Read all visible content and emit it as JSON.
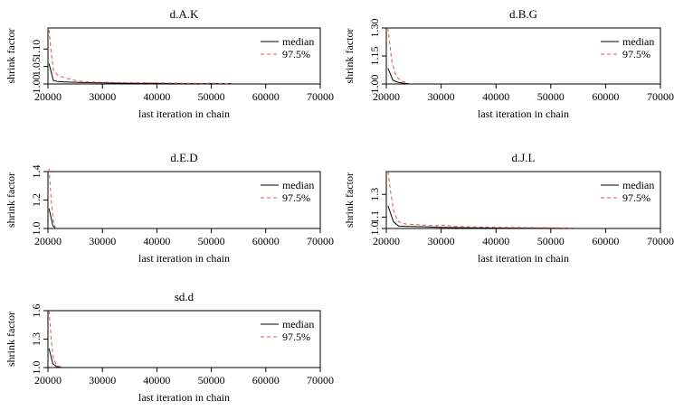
{
  "chart_data": [
    {
      "type": "line",
      "title": "d.A.K",
      "xlabel": "last iteration in chain",
      "ylabel": "shrink factor",
      "xlim": [
        20000,
        70000
      ],
      "ylim": [
        1.0,
        1.16
      ],
      "x_ticks": [
        20000,
        30000,
        40000,
        50000,
        60000,
        70000
      ],
      "y_ticks": [
        1.0,
        1.05,
        1.1
      ],
      "y_tick_labels": [
        "1.00",
        "1.05",
        "1.10"
      ],
      "legend": {
        "position": "top-right",
        "entries": [
          "median",
          "97.5%"
        ]
      },
      "series": [
        {
          "name": "median",
          "style": "solid",
          "color": "#000000",
          "x": [
            20200,
            21000,
            21800,
            23000,
            25000,
            27000,
            30000,
            35000,
            40000,
            45000,
            50000,
            54000
          ],
          "y": [
            1.058,
            1.01,
            1.007,
            1.006,
            1.005,
            1.004,
            1.003,
            1.002,
            1.002,
            1.001,
            1.001,
            1.001
          ]
        },
        {
          "name": "97.5%",
          "style": "dashed",
          "color": "#df5353",
          "x": [
            20200,
            20600,
            21000,
            21800,
            23000,
            25000,
            27000,
            30000,
            35000,
            40000,
            45000,
            50000,
            54000
          ],
          "y": [
            1.155,
            1.09,
            1.04,
            1.025,
            1.018,
            1.01,
            1.006,
            1.005,
            1.004,
            1.003,
            1.002,
            1.002,
            1.001
          ]
        }
      ]
    },
    {
      "type": "line",
      "title": "d.B.G",
      "xlabel": "last iteration in chain",
      "ylabel": "shrink factor",
      "xlim": [
        20000,
        70000
      ],
      "ylim": [
        1.0,
        1.3
      ],
      "x_ticks": [
        20000,
        30000,
        40000,
        50000,
        60000,
        70000
      ],
      "y_ticks": [
        1.0,
        1.15,
        1.3
      ],
      "y_tick_labels": [
        "1.00",
        "1.15",
        "1.30"
      ],
      "legend": {
        "position": "top-right",
        "entries": [
          "median",
          "97.5%"
        ]
      },
      "series": [
        {
          "name": "median",
          "style": "solid",
          "color": "#000000",
          "x": [
            20300,
            21200,
            22200,
            23200,
            24000
          ],
          "y": [
            1.085,
            1.02,
            1.008,
            1.004,
            1.002
          ]
        },
        {
          "name": "97.5%",
          "style": "dashed",
          "color": "#df5353",
          "x": [
            20300,
            21000,
            21800,
            22800,
            24000
          ],
          "y": [
            1.3,
            1.12,
            1.04,
            1.015,
            1.005
          ]
        }
      ]
    },
    {
      "type": "line",
      "title": "d.E.D",
      "xlabel": "last iteration in chain",
      "ylabel": "shrink factor",
      "xlim": [
        20000,
        70000
      ],
      "ylim": [
        1.0,
        1.4
      ],
      "x_ticks": [
        20000,
        30000,
        40000,
        50000,
        60000,
        70000
      ],
      "y_ticks": [
        1.0,
        1.2,
        1.4
      ],
      "y_tick_labels": [
        "1.0",
        "1.2",
        "1.4"
      ],
      "legend": {
        "position": "top-right",
        "entries": [
          "median",
          "97.5%"
        ]
      },
      "series": [
        {
          "name": "median",
          "style": "solid",
          "color": "#000000",
          "x": [
            20200,
            20900,
            21400
          ],
          "y": [
            1.14,
            1.02,
            1.0
          ]
        },
        {
          "name": "97.5%",
          "style": "dashed",
          "color": "#df5353",
          "x": [
            20200,
            20600,
            21000,
            21400
          ],
          "y": [
            1.42,
            1.2,
            1.05,
            1.0
          ]
        }
      ]
    },
    {
      "type": "line",
      "title": "d.J.L",
      "xlabel": "last iteration in chain",
      "ylabel": "shrink factor",
      "xlim": [
        20000,
        70000
      ],
      "ylim": [
        1.0,
        1.5
      ],
      "x_ticks": [
        20000,
        30000,
        40000,
        50000,
        60000,
        70000
      ],
      "y_ticks": [
        1.0,
        1.1,
        1.3
      ],
      "y_tick_labels": [
        "1.0",
        "1.1",
        "1.3"
      ],
      "legend": {
        "position": "top-right",
        "entries": [
          "median",
          "97.5%"
        ]
      },
      "series": [
        {
          "name": "median",
          "style": "solid",
          "color": "#000000",
          "x": [
            20300,
            21300,
            22300,
            24000,
            27000,
            30000,
            32000,
            35000,
            40000,
            45000,
            50000,
            54000
          ],
          "y": [
            1.2,
            1.06,
            1.02,
            1.018,
            1.015,
            1.01,
            1.008,
            1.006,
            1.004,
            1.003,
            1.002,
            1.002
          ]
        },
        {
          "name": "97.5%",
          "style": "dashed",
          "color": "#df5353",
          "x": [
            20300,
            20800,
            21400,
            22200,
            23500,
            25000,
            27000,
            29000,
            30500,
            32000,
            35000,
            40000,
            45000,
            50000,
            54000
          ],
          "y": [
            1.5,
            1.32,
            1.14,
            1.06,
            1.04,
            1.035,
            1.03,
            1.025,
            1.03,
            1.02,
            1.015,
            1.01,
            1.008,
            1.006,
            1.004
          ]
        }
      ]
    },
    {
      "type": "line",
      "title": "sd.d",
      "xlabel": "last iteration in chain",
      "ylabel": "shrink factor",
      "xlim": [
        20000,
        70000
      ],
      "ylim": [
        1.0,
        1.6
      ],
      "x_ticks": [
        20000,
        30000,
        40000,
        50000,
        60000,
        70000
      ],
      "y_ticks": [
        1.0,
        1.3,
        1.6
      ],
      "y_tick_labels": [
        "1.0",
        "1.3",
        "1.6"
      ],
      "legend": {
        "position": "top-right",
        "entries": [
          "median",
          "97.5%"
        ]
      },
      "series": [
        {
          "name": "median",
          "style": "solid",
          "color": "#000000",
          "x": [
            20200,
            20900,
            21600,
            22500
          ],
          "y": [
            1.2,
            1.04,
            1.01,
            1.005
          ]
        },
        {
          "name": "97.5%",
          "style": "dashed",
          "color": "#df5353",
          "x": [
            20200,
            20600,
            21000,
            21600,
            22500
          ],
          "y": [
            1.6,
            1.3,
            1.1,
            1.02,
            1.005
          ]
        }
      ]
    }
  ]
}
